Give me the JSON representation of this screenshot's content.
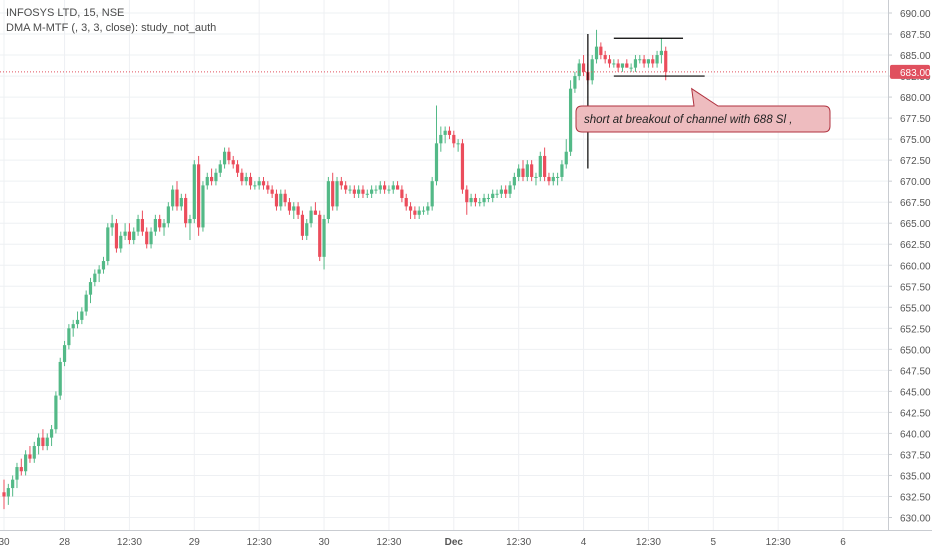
{
  "legend": {
    "symbol_line": "INFOSYS LTD, 15, NSE",
    "study_line": "DMA M-MTF (, 3, 3, close): study_not_auth"
  },
  "colors": {
    "up": "#53b987",
    "down": "#eb4d5c",
    "grid": "#eef0f3",
    "axis_text": "#555555",
    "price_line": "#e0505e",
    "price_badge": "#e0505e",
    "callout_fill": "#eebcbf",
    "callout_stroke": "#b0323f",
    "drawing": "#000000"
  },
  "chart_data": {
    "type": "candlestick",
    "title": "INFOSYS LTD, 15, NSE",
    "ylim": [
      628.5,
      691.5
    ],
    "y_ticks": [
      630,
      632.5,
      635,
      637.5,
      640,
      642.5,
      645,
      647.5,
      650,
      652.5,
      655,
      657.5,
      660,
      662.5,
      665,
      667.5,
      670,
      672.5,
      675,
      677.5,
      680,
      682.5,
      685,
      687.5,
      690
    ],
    "y_tick_labels": [
      "630.00",
      "632.50",
      "635.00",
      "637.50",
      "640.00",
      "642.50",
      "645.00",
      "647.50",
      "650.00",
      "652.50",
      "655.00",
      "657.50",
      "660.00",
      "662.50",
      "665.00",
      "667.50",
      "670.00",
      "672.50",
      "675.00",
      "677.50",
      "680.00",
      "682.50",
      "685.00",
      "687.50",
      "690.00"
    ],
    "x_labels": [
      {
        "label": "30",
        "bar": 0
      },
      {
        "label": "28",
        "bar": 14
      },
      {
        "label": "12:30",
        "bar": 29
      },
      {
        "label": "29",
        "bar": 44
      },
      {
        "label": "12:30",
        "bar": 59
      },
      {
        "label": "30",
        "bar": 74
      },
      {
        "label": "12:30",
        "bar": 89
      },
      {
        "label": "Dec",
        "bar": 104
      },
      {
        "label": "12:30",
        "bar": 119
      },
      {
        "label": "4",
        "bar": 134
      },
      {
        "label": "12:30",
        "bar": 149
      },
      {
        "label": "5",
        "bar": 164
      },
      {
        "label": "12:30",
        "bar": 179
      },
      {
        "label": "6",
        "bar": 194
      }
    ],
    "last_price": 683.0,
    "last_price_label": "683.00",
    "candles": [
      [
        633.0,
        634.5,
        631.0,
        632.5
      ],
      [
        632.5,
        634.0,
        631.5,
        633.5
      ],
      [
        633.5,
        635.0,
        632.5,
        634.5
      ],
      [
        634.5,
        636.5,
        633.5,
        636.0
      ],
      [
        636.0,
        637.0,
        635.0,
        635.5
      ],
      [
        635.5,
        638.0,
        635.0,
        637.5
      ],
      [
        637.5,
        638.5,
        636.5,
        637.0
      ],
      [
        637.0,
        639.0,
        636.5,
        638.5
      ],
      [
        638.5,
        640.0,
        637.5,
        639.5
      ],
      [
        639.5,
        640.5,
        638.0,
        638.5
      ],
      [
        638.5,
        640.0,
        638.0,
        639.5
      ],
      [
        639.5,
        641.0,
        638.5,
        640.5
      ],
      [
        640.5,
        645.0,
        640.0,
        644.5
      ],
      [
        644.5,
        649.0,
        644.0,
        648.5
      ],
      [
        648.5,
        651.0,
        648.0,
        650.5
      ],
      [
        650.5,
        653.0,
        650.0,
        652.5
      ],
      [
        652.5,
        653.5,
        651.5,
        653.0
      ],
      [
        653.0,
        654.5,
        652.5,
        653.5
      ],
      [
        653.5,
        655.0,
        653.0,
        654.5
      ],
      [
        654.5,
        657.0,
        654.0,
        656.5
      ],
      [
        656.5,
        658.5,
        655.5,
        658.0
      ],
      [
        658.0,
        659.5,
        657.5,
        659.0
      ],
      [
        659.0,
        660.0,
        658.0,
        659.5
      ],
      [
        659.5,
        661.0,
        659.0,
        660.5
      ],
      [
        660.5,
        665.0,
        660.0,
        664.5
      ],
      [
        664.5,
        666.0,
        663.5,
        665.0
      ],
      [
        665.0,
        665.5,
        661.5,
        662.0
      ],
      [
        662.0,
        664.0,
        661.5,
        663.5
      ],
      [
        663.5,
        665.0,
        663.0,
        664.0
      ],
      [
        664.0,
        665.0,
        662.5,
        663.0
      ],
      [
        663.0,
        664.5,
        662.5,
        664.0
      ],
      [
        664.0,
        666.0,
        663.5,
        665.5
      ],
      [
        665.5,
        666.5,
        663.5,
        664.0
      ],
      [
        664.0,
        664.5,
        662.0,
        662.5
      ],
      [
        662.5,
        664.5,
        662.0,
        664.0
      ],
      [
        664.0,
        666.0,
        663.5,
        665.5
      ],
      [
        665.5,
        666.0,
        664.0,
        664.5
      ],
      [
        664.5,
        665.5,
        663.5,
        665.0
      ],
      [
        665.0,
        667.5,
        664.5,
        667.0
      ],
      [
        667.0,
        669.5,
        666.5,
        669.0
      ],
      [
        669.0,
        670.0,
        666.5,
        667.0
      ],
      [
        667.0,
        668.5,
        666.5,
        668.0
      ],
      [
        668.0,
        668.5,
        664.5,
        665.0
      ],
      [
        665.0,
        666.0,
        663.0,
        665.5
      ],
      [
        665.5,
        672.5,
        665.0,
        672.0
      ],
      [
        672.0,
        673.0,
        663.5,
        664.5
      ],
      [
        664.5,
        670.0,
        664.0,
        669.5
      ],
      [
        669.5,
        671.0,
        669.0,
        670.5
      ],
      [
        670.5,
        671.5,
        669.5,
        670.0
      ],
      [
        670.0,
        671.5,
        669.5,
        671.0
      ],
      [
        671.0,
        672.5,
        670.5,
        672.0
      ],
      [
        672.0,
        674.0,
        671.5,
        673.5
      ],
      [
        673.5,
        674.0,
        672.0,
        672.5
      ],
      [
        672.5,
        673.0,
        671.5,
        672.0
      ],
      [
        672.0,
        672.5,
        670.5,
        671.0
      ],
      [
        671.0,
        671.5,
        669.5,
        670.0
      ],
      [
        670.0,
        671.0,
        669.5,
        670.5
      ],
      [
        670.5,
        671.0,
        669.0,
        669.5
      ],
      [
        669.5,
        670.0,
        669.0,
        669.5
      ],
      [
        669.5,
        670.5,
        669.0,
        670.0
      ],
      [
        670.0,
        670.5,
        669.0,
        669.5
      ],
      [
        669.5,
        670.0,
        668.5,
        669.0
      ],
      [
        669.0,
        669.5,
        668.0,
        668.5
      ],
      [
        668.5,
        669.0,
        666.5,
        667.0
      ],
      [
        667.0,
        669.0,
        666.5,
        668.5
      ],
      [
        668.5,
        669.0,
        667.0,
        667.5
      ],
      [
        667.5,
        668.0,
        666.0,
        666.5
      ],
      [
        666.5,
        667.5,
        665.5,
        667.0
      ],
      [
        667.0,
        667.5,
        665.5,
        666.0
      ],
      [
        666.0,
        666.5,
        663.0,
        663.5
      ],
      [
        663.5,
        665.5,
        663.0,
        665.0
      ],
      [
        665.0,
        667.0,
        664.5,
        666.5
      ],
      [
        666.5,
        667.5,
        666.0,
        666.0
      ],
      [
        666.0,
        666.5,
        660.5,
        661.0
      ],
      [
        661.0,
        666.0,
        659.5,
        665.5
      ],
      [
        665.5,
        670.5,
        665.0,
        670.0
      ],
      [
        670.0,
        671.0,
        666.5,
        667.0
      ],
      [
        667.0,
        670.5,
        666.5,
        670.0
      ],
      [
        670.0,
        670.5,
        669.0,
        669.5
      ],
      [
        669.5,
        670.0,
        668.5,
        669.0
      ],
      [
        669.0,
        669.5,
        668.5,
        669.0
      ],
      [
        669.0,
        669.5,
        668.0,
        668.5
      ],
      [
        668.5,
        669.5,
        668.0,
        669.0
      ],
      [
        669.0,
        669.5,
        668.0,
        668.5
      ],
      [
        668.5,
        669.0,
        668.0,
        668.5
      ],
      [
        668.5,
        669.5,
        668.0,
        669.0
      ],
      [
        669.0,
        669.5,
        668.5,
        669.0
      ],
      [
        669.0,
        670.0,
        668.5,
        669.5
      ],
      [
        669.5,
        670.0,
        668.5,
        669.0
      ],
      [
        669.0,
        669.5,
        668.5,
        669.0
      ],
      [
        669.0,
        670.0,
        668.5,
        669.5
      ],
      [
        669.5,
        670.0,
        669.0,
        669.0
      ],
      [
        669.0,
        669.5,
        667.5,
        668.0
      ],
      [
        668.0,
        668.5,
        666.5,
        667.0
      ],
      [
        667.0,
        667.5,
        665.5,
        666.5
      ],
      [
        666.5,
        667.0,
        665.5,
        666.0
      ],
      [
        666.0,
        667.0,
        665.5,
        666.5
      ],
      [
        666.5,
        667.0,
        666.0,
        666.5
      ],
      [
        666.5,
        667.5,
        666.0,
        667.0
      ],
      [
        667.0,
        670.5,
        666.5,
        670.0
      ],
      [
        670.0,
        679.0,
        669.5,
        674.5
      ],
      [
        674.5,
        676.5,
        673.5,
        675.5
      ],
      [
        675.5,
        676.5,
        674.5,
        676.0
      ],
      [
        676.0,
        676.5,
        675.0,
        675.5
      ],
      [
        675.5,
        676.0,
        674.0,
        674.5
      ],
      [
        674.5,
        675.0,
        673.5,
        674.5
      ],
      [
        674.5,
        675.0,
        668.5,
        669.0
      ],
      [
        669.0,
        669.5,
        666.0,
        667.5
      ],
      [
        667.5,
        668.5,
        667.0,
        668.0
      ],
      [
        668.0,
        668.5,
        667.0,
        667.5
      ],
      [
        667.5,
        668.0,
        667.0,
        667.5
      ],
      [
        667.5,
        668.5,
        667.0,
        668.0
      ],
      [
        668.0,
        668.5,
        667.5,
        668.0
      ],
      [
        668.0,
        669.0,
        667.5,
        668.5
      ],
      [
        668.5,
        669.0,
        668.0,
        668.5
      ],
      [
        668.5,
        669.5,
        668.0,
        669.0
      ],
      [
        669.0,
        669.5,
        668.0,
        668.5
      ],
      [
        668.5,
        670.0,
        668.0,
        669.5
      ],
      [
        669.5,
        671.0,
        669.0,
        670.5
      ],
      [
        670.5,
        672.0,
        670.0,
        671.5
      ],
      [
        671.5,
        672.5,
        670.0,
        670.5
      ],
      [
        670.5,
        672.5,
        670.0,
        672.0
      ],
      [
        672.0,
        672.5,
        670.0,
        670.5
      ],
      [
        670.5,
        671.0,
        669.5,
        670.5
      ],
      [
        670.5,
        673.5,
        670.0,
        673.0
      ],
      [
        673.0,
        674.0,
        670.0,
        670.5
      ],
      [
        670.5,
        671.0,
        669.5,
        670.0
      ],
      [
        670.0,
        671.0,
        669.5,
        670.5
      ],
      [
        670.5,
        671.0,
        669.5,
        670.5
      ],
      [
        670.5,
        672.5,
        670.0,
        672.0
      ],
      [
        672.0,
        675.0,
        671.5,
        673.5
      ],
      [
        673.5,
        682.0,
        673.0,
        681.0
      ],
      [
        681.0,
        683.0,
        680.5,
        682.5
      ],
      [
        682.5,
        684.5,
        682.0,
        684.0
      ],
      [
        684.0,
        685.0,
        682.5,
        683.0
      ],
      [
        683.0,
        684.0,
        681.5,
        682.0
      ],
      [
        682.0,
        685.0,
        681.5,
        684.5
      ],
      [
        684.5,
        688.0,
        684.0,
        686.0
      ],
      [
        686.0,
        686.5,
        684.5,
        685.0
      ],
      [
        685.0,
        685.5,
        684.0,
        684.5
      ],
      [
        684.5,
        685.0,
        683.5,
        684.0
      ],
      [
        684.0,
        684.5,
        683.5,
        684.0
      ],
      [
        684.0,
        684.5,
        683.0,
        683.5
      ],
      [
        683.5,
        684.0,
        683.0,
        684.0
      ],
      [
        684.0,
        684.5,
        683.5,
        683.5
      ],
      [
        683.5,
        684.0,
        683.0,
        683.5
      ],
      [
        683.5,
        685.0,
        683.0,
        684.5
      ],
      [
        684.5,
        685.0,
        684.0,
        684.5
      ],
      [
        684.5,
        685.0,
        683.5,
        684.0
      ],
      [
        684.0,
        684.5,
        683.5,
        684.5
      ],
      [
        684.5,
        685.0,
        683.5,
        684.0
      ],
      [
        684.0,
        685.5,
        683.5,
        685.0
      ],
      [
        685.0,
        687.0,
        684.0,
        685.5
      ],
      [
        685.5,
        686.0,
        682.0,
        683.0
      ]
    ],
    "annotation": {
      "text": "short at breakout of channel  with 688 Sl ,",
      "channel_upper": 687.0,
      "channel_lower": 682.5,
      "channel_from_bar": 141,
      "channel_to_bar": 157,
      "lower_line_to_bar": 162,
      "vline_bar": 135,
      "vline_top": 687.5,
      "vline_bottom": 671.5,
      "pointer_bar": 159,
      "pointer_price": 681.0
    }
  }
}
